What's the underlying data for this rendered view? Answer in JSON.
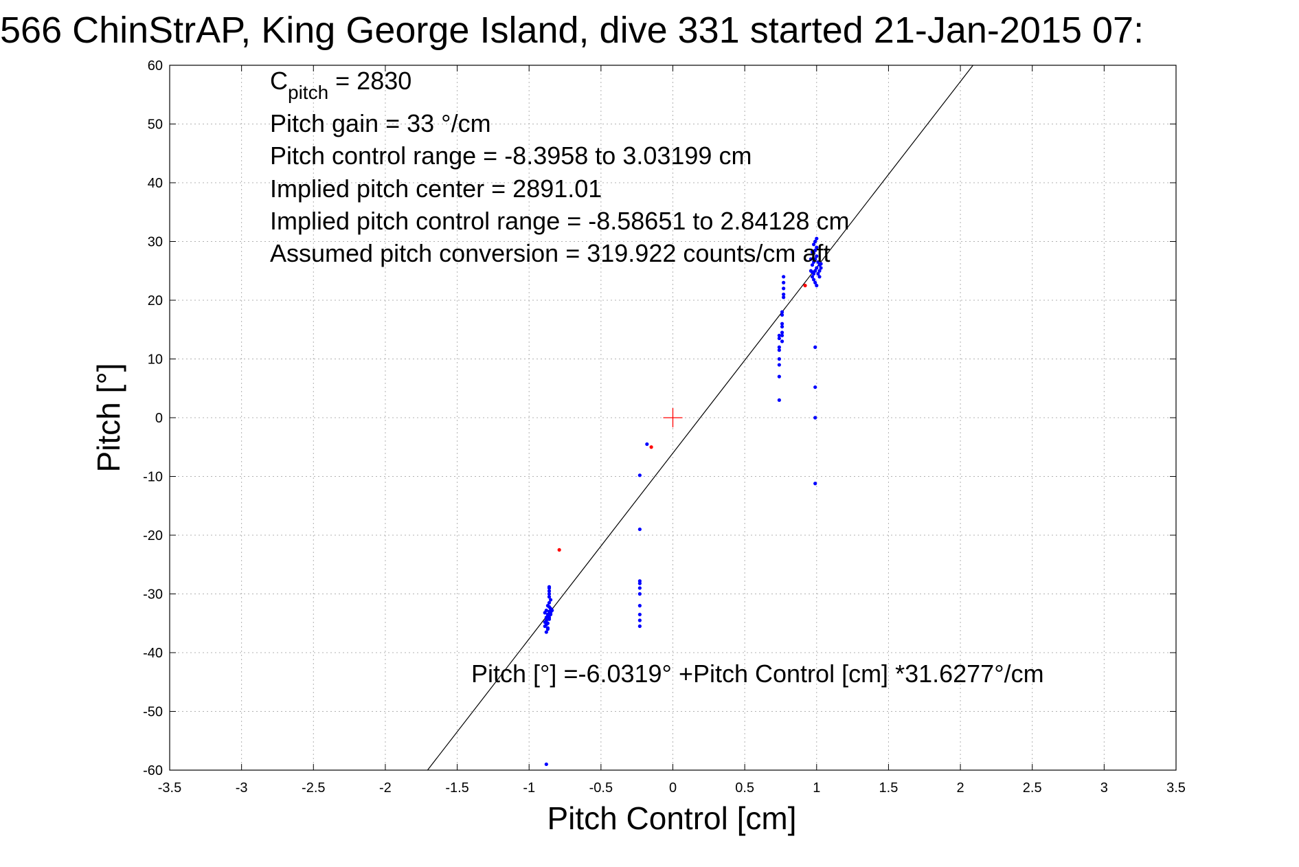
{
  "chart_data": {
    "type": "scatter",
    "title": "566 ChinStrAP, King George Island, dive 331 started 21-Jan-2015 07:",
    "xlabel": "Pitch Control [cm]",
    "ylabel": "Pitch [°]",
    "xlim": [
      -3.5,
      3.5
    ],
    "ylim": [
      -60,
      60
    ],
    "xticks": [
      -3.5,
      -3,
      -2.5,
      -2,
      -1.5,
      -1,
      -0.5,
      0,
      0.5,
      1,
      1.5,
      2,
      2.5,
      3,
      3.5
    ],
    "xtick_labels": [
      "-3.5",
      "-3",
      "-2.5",
      "-2",
      "-1.5",
      "-1",
      "-0.5",
      "0",
      "0.5",
      "1",
      "1.5",
      "2",
      "2.5",
      "3",
      "3.5"
    ],
    "yticks": [
      60,
      50,
      40,
      30,
      20,
      10,
      0,
      -10,
      -20,
      -30,
      -40,
      -50,
      -60
    ],
    "ytick_labels": [
      "60",
      "50",
      "40",
      "30",
      "20",
      "10",
      "0",
      "-10",
      "-20",
      "-30",
      "-40",
      "-50",
      "-60"
    ],
    "grid": true,
    "colors": {
      "points": "#0000ff",
      "outliers": "#ff0000",
      "center_marker": "#ff0000",
      "fit_line": "#000000",
      "grid": "#b0b0b0"
    },
    "annotations": {
      "cpitch_main": "C",
      "cpitch_sub": "pitch",
      "cpitch_value": " = 2830",
      "pitch_gain": "Pitch gain = 33 °/cm",
      "control_range": "Pitch control range = -8.3958 to 3.03199 cm",
      "implied_center": "Implied pitch center = 2891.01",
      "implied_range": "Implied pitch control range = -8.58651 to 2.84128 cm",
      "conversion": "Assumed pitch conversion = 319.922 counts/cm aft",
      "fit_equation": "Pitch [°] =-6.0319° +Pitch Control [cm] *31.6277°/cm"
    },
    "fit": {
      "intercept": -6.0319,
      "slope": 31.6277
    },
    "center_marker": {
      "x": 0,
      "y": 0
    },
    "series": [
      {
        "marker": "dot",
        "color": "#0000ff",
        "points": [
          [
            -0.88,
            -59
          ],
          [
            -0.88,
            -36.5
          ],
          [
            -0.87,
            -36
          ],
          [
            -0.89,
            -35.5
          ],
          [
            -0.87,
            -35
          ],
          [
            -0.88,
            -34.5
          ],
          [
            -0.86,
            -34
          ],
          [
            -0.87,
            -33.5
          ],
          [
            -0.89,
            -33.2
          ],
          [
            -0.86,
            -33
          ],
          [
            -0.88,
            -32.8
          ],
          [
            -0.85,
            -32.5
          ],
          [
            -0.87,
            -32
          ],
          [
            -0.86,
            -31.5
          ],
          [
            -0.85,
            -31
          ],
          [
            -0.86,
            -30.5
          ],
          [
            -0.86,
            -30
          ],
          [
            -0.86,
            -29.5
          ],
          [
            -0.86,
            -29
          ],
          [
            -0.86,
            -28.8
          ],
          [
            -0.88,
            -34
          ],
          [
            -0.87,
            -33.8
          ],
          [
            -0.85,
            -33.5
          ],
          [
            -0.86,
            -32.2
          ],
          [
            -0.84,
            -32.8
          ],
          [
            -0.87,
            -35.8
          ],
          [
            -0.88,
            -35.2
          ],
          [
            -0.89,
            -34.8
          ],
          [
            -0.86,
            -34.3
          ],
          [
            -0.85,
            -33.2
          ],
          [
            -0.23,
            -35.5
          ],
          [
            -0.23,
            -34.5
          ],
          [
            -0.23,
            -33.5
          ],
          [
            -0.23,
            -32
          ],
          [
            -0.23,
            -30
          ],
          [
            -0.23,
            -29
          ],
          [
            -0.23,
            -28.2
          ],
          [
            -0.23,
            -27.8
          ],
          [
            -0.23,
            -19
          ],
          [
            -0.23,
            -9.8
          ],
          [
            -0.18,
            -4.5
          ],
          [
            0.74,
            3
          ],
          [
            0.74,
            7
          ],
          [
            0.74,
            9
          ],
          [
            0.74,
            10
          ],
          [
            0.74,
            11.5
          ],
          [
            0.74,
            12
          ],
          [
            0.74,
            13.5
          ],
          [
            0.74,
            14
          ],
          [
            0.76,
            13
          ],
          [
            0.76,
            14
          ],
          [
            0.76,
            14.5
          ],
          [
            0.76,
            15.5
          ],
          [
            0.76,
            16
          ],
          [
            0.76,
            17.5
          ],
          [
            0.76,
            18
          ],
          [
            0.77,
            20.5
          ],
          [
            0.77,
            21
          ],
          [
            0.77,
            22
          ],
          [
            0.77,
            23
          ],
          [
            0.77,
            24
          ],
          [
            0.99,
            12
          ],
          [
            0.99,
            5.2
          ],
          [
            0.99,
            0
          ],
          [
            0.99,
            -11.2
          ],
          [
            0.97,
            24
          ],
          [
            0.98,
            24.5
          ],
          [
            0.99,
            25
          ],
          [
            1.0,
            25.5
          ],
          [
            0.97,
            26
          ],
          [
            0.98,
            26.5
          ],
          [
            0.99,
            27
          ],
          [
            1.0,
            27.5
          ],
          [
            0.98,
            28
          ],
          [
            0.99,
            28.5
          ],
          [
            1.0,
            29
          ],
          [
            0.98,
            29.5
          ],
          [
            0.99,
            30
          ],
          [
            1.0,
            30.5
          ],
          [
            1.01,
            24.5
          ],
          [
            1.02,
            25
          ],
          [
            1.03,
            25.5
          ],
          [
            1.02,
            26
          ],
          [
            1.01,
            26.5
          ],
          [
            0.96,
            25
          ],
          [
            0.97,
            24.8
          ],
          [
            0.98,
            23.5
          ],
          [
            0.99,
            23
          ],
          [
            1.0,
            22.5
          ],
          [
            1.02,
            24
          ],
          [
            1.03,
            26.2
          ],
          [
            0.96,
            27
          ],
          [
            0.97,
            28.2
          ]
        ]
      },
      {
        "marker": "dot",
        "color": "#ff0000",
        "points": [
          [
            -0.79,
            -22.5
          ],
          [
            -0.15,
            -5
          ],
          [
            0.92,
            22.5
          ]
        ]
      }
    ]
  }
}
